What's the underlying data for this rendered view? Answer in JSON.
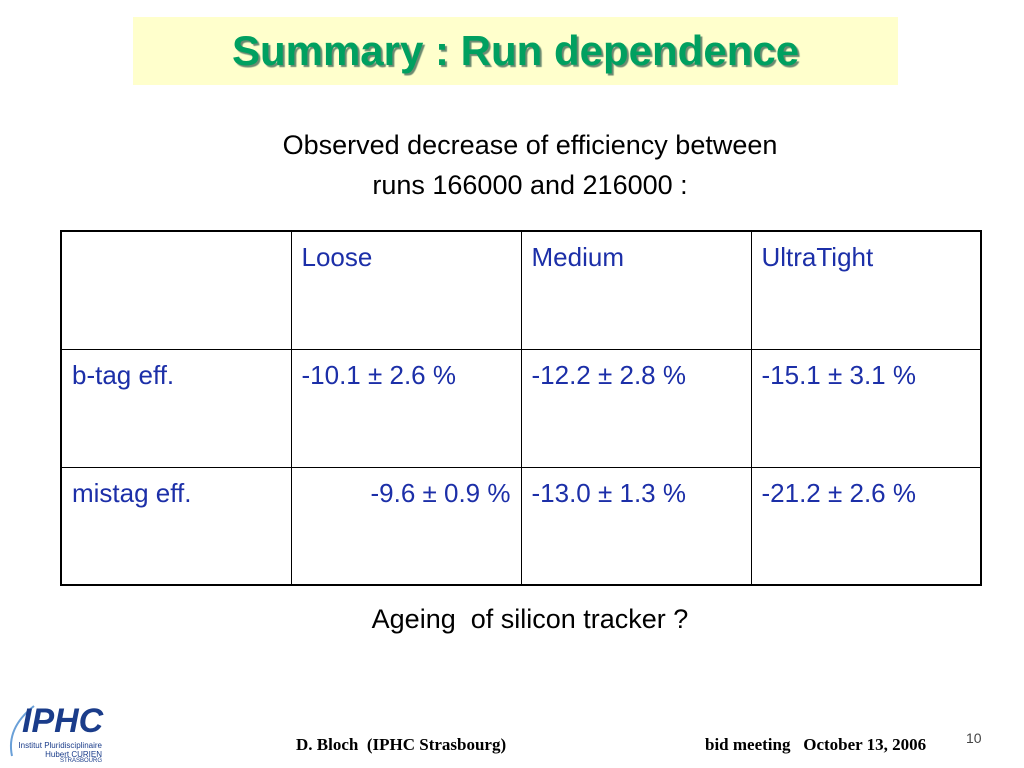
{
  "header": {
    "title": "Summary : Run dependence"
  },
  "intro": [
    "Observed decrease of efficiency between",
    "runs 166000 and 216000 :"
  ],
  "table": {
    "columns": [
      "Loose",
      "Medium",
      "UltraTight"
    ],
    "rows": [
      [
        "b-tag eff.",
        "-10.1 ± 2.6 %",
        "-12.2 ± 2.8 %",
        "-15.1 ± 3.1 %"
      ],
      [
        "mistag eff.",
        "-9.6 ± 0.9 %",
        "-13.0 ± 1.3 %",
        "-21.2 ± 2.6 %"
      ]
    ]
  },
  "caption": "Ageing  of silicon tracker ?",
  "logo": {
    "name": "IPHC",
    "lines": [
      "Institut Pluridisciplinaire",
      "Hubert CURIEN",
      "STRASBOURG"
    ]
  },
  "footer": {
    "author": "D. Bloch  (IPHC Strasbourg)",
    "meeting": "bid meeting   October 13, 2006",
    "page": "10"
  }
}
